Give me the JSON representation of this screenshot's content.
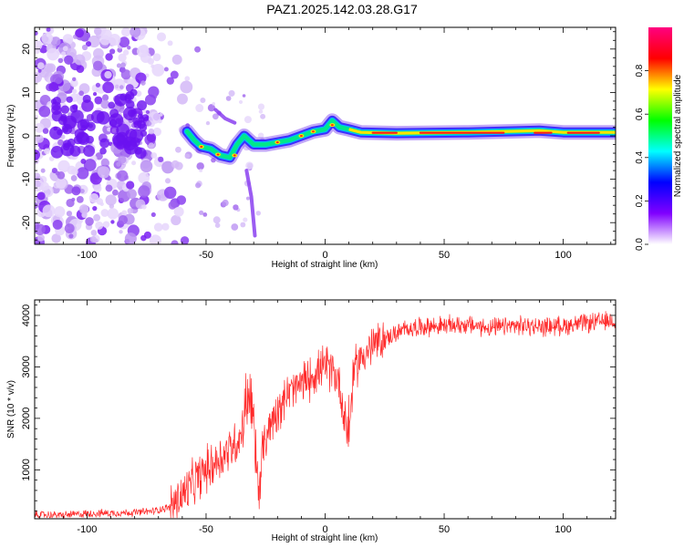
{
  "title": "PAZ1.2025.142.03.28.G17",
  "chart_data": [
    {
      "type": "heatmap",
      "xlabel": "Height of straight line (km)",
      "ylabel": "Frequency (Hz)",
      "xlim": [
        -122,
        122
      ],
      "ylim": [
        -25,
        25
      ],
      "xticks": [
        -100,
        -50,
        0,
        50,
        100
      ],
      "yticks": [
        -20,
        -10,
        0,
        10,
        20
      ],
      "colorbar": {
        "label": "Normalized spectral amplitude",
        "range": [
          0,
          1
        ],
        "ticks": [
          0.0,
          0.2,
          0.4,
          0.6,
          0.8
        ],
        "colors": [
          "#ffffff",
          "#8000ff",
          "#0000ff",
          "#00ffff",
          "#00ff00",
          "#ffff00",
          "#ff0000",
          "#ff0080"
        ]
      },
      "signal_track": [
        [
          -58,
          1
        ],
        [
          -55,
          -1
        ],
        [
          -52,
          -2.5
        ],
        [
          -48,
          -3
        ],
        [
          -44,
          -4.5
        ],
        [
          -40,
          -5
        ],
        [
          -37,
          -2
        ],
        [
          -34,
          0
        ],
        [
          -30,
          -2
        ],
        [
          -25,
          -2
        ],
        [
          -20,
          -1.5
        ],
        [
          -15,
          -1
        ],
        [
          -10,
          0
        ],
        [
          -5,
          1
        ],
        [
          0,
          1.5
        ],
        [
          3,
          3.5
        ],
        [
          6,
          2
        ],
        [
          10,
          1.5
        ],
        [
          15,
          0.8
        ],
        [
          30,
          0.6
        ],
        [
          60,
          0.8
        ],
        [
          90,
          1.2
        ],
        [
          100,
          0.8
        ],
        [
          122,
          0.8
        ]
      ],
      "grid": false
    },
    {
      "type": "line",
      "xlabel": "Height of straight line (km)",
      "ylabel": "SNR (10 * v/v)",
      "xlim": [
        -122,
        122
      ],
      "ylim": [
        50,
        4300
      ],
      "xticks": [
        -100,
        -50,
        0,
        50,
        100
      ],
      "yticks": [
        1000,
        2000,
        3000,
        4000
      ],
      "color": "#ff2a2a",
      "series": [
        {
          "x": [
            -122,
            -110,
            -100,
            -90,
            -80,
            -72,
            -65,
            -60,
            -55,
            -50,
            -45,
            -40,
            -35,
            -32,
            -30,
            -28,
            -26,
            -24,
            -20,
            -15,
            -10,
            -5,
            0,
            3,
            6,
            8,
            10,
            12,
            15,
            20,
            25,
            30,
            35,
            40,
            50,
            60,
            70,
            80,
            90,
            100,
            110,
            122
          ],
          "y": [
            130,
            120,
            150,
            160,
            170,
            200,
            280,
            500,
            750,
            1000,
            1200,
            1400,
            1700,
            2400,
            1700,
            600,
            1400,
            1800,
            2200,
            2500,
            2650,
            2850,
            3000,
            2950,
            2700,
            2000,
            1500,
            2900,
            3200,
            3400,
            3550,
            3650,
            3750,
            3780,
            3800,
            3820,
            3750,
            3800,
            3780,
            3800,
            3850,
            3900
          ]
        }
      ],
      "grid": false
    }
  ]
}
